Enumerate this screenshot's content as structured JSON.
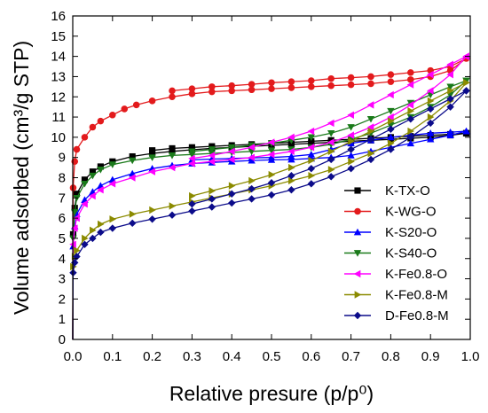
{
  "chart_data": {
    "type": "line",
    "xlabel": "Relative presure (p/p⁰)",
    "ylabel": "Volume adsorbed (cm³/g STP)",
    "xlim": [
      0.0,
      1.0
    ],
    "ylim": [
      0,
      16
    ],
    "x_ticks": [
      "0.0",
      "0.1",
      "0.2",
      "0.3",
      "0.4",
      "0.5",
      "0.6",
      "0.7",
      "0.8",
      "0.9",
      "1.0"
    ],
    "y_ticks": [
      "0",
      "1",
      "2",
      "3",
      "4",
      "5",
      "6",
      "7",
      "8",
      "9",
      "10",
      "11",
      "12",
      "13",
      "14",
      "15",
      "16"
    ],
    "grid": false,
    "legend_position": "bottom-right",
    "series": [
      {
        "name": "K-TX-O",
        "color": "#000000",
        "marker": "square",
        "adsorption": [
          [
            0.0,
            0
          ],
          [
            0.001,
            5.2
          ],
          [
            0.005,
            6.5
          ],
          [
            0.01,
            7.2
          ],
          [
            0.03,
            7.9
          ],
          [
            0.05,
            8.3
          ],
          [
            0.07,
            8.55
          ],
          [
            0.1,
            8.8
          ],
          [
            0.15,
            9.05
          ],
          [
            0.2,
            9.2
          ],
          [
            0.25,
            9.3
          ],
          [
            0.3,
            9.38
          ],
          [
            0.35,
            9.45
          ],
          [
            0.4,
            9.5
          ],
          [
            0.45,
            9.55
          ],
          [
            0.5,
            9.6
          ],
          [
            0.55,
            9.65
          ],
          [
            0.6,
            9.7
          ],
          [
            0.65,
            9.75
          ],
          [
            0.7,
            9.8
          ],
          [
            0.75,
            9.85
          ],
          [
            0.8,
            9.9
          ],
          [
            0.85,
            9.95
          ],
          [
            0.9,
            10.0
          ],
          [
            0.95,
            10.1
          ],
          [
            0.99,
            10.2
          ]
        ],
        "desorption": [
          [
            0.99,
            10.2
          ],
          [
            0.95,
            10.15
          ],
          [
            0.9,
            10.1
          ],
          [
            0.85,
            10.05
          ],
          [
            0.8,
            10.0
          ],
          [
            0.75,
            9.95
          ],
          [
            0.7,
            9.9
          ],
          [
            0.65,
            9.85
          ],
          [
            0.6,
            9.8
          ],
          [
            0.55,
            9.75
          ],
          [
            0.5,
            9.7
          ],
          [
            0.45,
            9.65
          ],
          [
            0.4,
            9.6
          ],
          [
            0.35,
            9.55
          ],
          [
            0.3,
            9.5
          ],
          [
            0.25,
            9.45
          ],
          [
            0.2,
            9.35
          ]
        ]
      },
      {
        "name": "K-WG-O",
        "color": "#e31a1c",
        "marker": "circle",
        "adsorption": [
          [
            0.0,
            0
          ],
          [
            0.001,
            7.5
          ],
          [
            0.005,
            8.8
          ],
          [
            0.01,
            9.4
          ],
          [
            0.03,
            10.0
          ],
          [
            0.05,
            10.5
          ],
          [
            0.07,
            10.8
          ],
          [
            0.1,
            11.1
          ],
          [
            0.13,
            11.4
          ],
          [
            0.16,
            11.6
          ],
          [
            0.2,
            11.8
          ],
          [
            0.25,
            12.0
          ],
          [
            0.3,
            12.15
          ],
          [
            0.35,
            12.25
          ],
          [
            0.4,
            12.3
          ],
          [
            0.45,
            12.35
          ],
          [
            0.5,
            12.4
          ],
          [
            0.55,
            12.45
          ],
          [
            0.6,
            12.5
          ],
          [
            0.65,
            12.55
          ],
          [
            0.7,
            12.6
          ],
          [
            0.75,
            12.65
          ],
          [
            0.8,
            12.75
          ],
          [
            0.85,
            12.85
          ],
          [
            0.9,
            13.0
          ],
          [
            0.95,
            13.3
          ],
          [
            0.99,
            13.9
          ]
        ],
        "desorption": [
          [
            0.99,
            13.9
          ],
          [
            0.95,
            13.5
          ],
          [
            0.9,
            13.3
          ],
          [
            0.85,
            13.2
          ],
          [
            0.8,
            13.1
          ],
          [
            0.75,
            13.0
          ],
          [
            0.7,
            12.95
          ],
          [
            0.65,
            12.9
          ],
          [
            0.6,
            12.8
          ],
          [
            0.55,
            12.75
          ],
          [
            0.5,
            12.7
          ],
          [
            0.45,
            12.62
          ],
          [
            0.4,
            12.55
          ],
          [
            0.35,
            12.5
          ],
          [
            0.3,
            12.4
          ],
          [
            0.25,
            12.3
          ]
        ]
      },
      {
        "name": "K-S20-O",
        "color": "#0000ff",
        "marker": "triangle-up",
        "adsorption": [
          [
            0.0,
            0
          ],
          [
            0.001,
            4.6
          ],
          [
            0.005,
            5.6
          ],
          [
            0.01,
            6.2
          ],
          [
            0.03,
            6.9
          ],
          [
            0.05,
            7.3
          ],
          [
            0.07,
            7.6
          ],
          [
            0.1,
            7.9
          ],
          [
            0.15,
            8.2
          ],
          [
            0.2,
            8.45
          ],
          [
            0.25,
            8.6
          ],
          [
            0.3,
            8.7
          ],
          [
            0.35,
            8.75
          ],
          [
            0.4,
            8.8
          ],
          [
            0.45,
            8.85
          ],
          [
            0.5,
            8.88
          ],
          [
            0.55,
            8.9
          ],
          [
            0.6,
            8.95
          ],
          [
            0.65,
            9.0
          ],
          [
            0.7,
            9.1
          ],
          [
            0.75,
            9.3
          ],
          [
            0.8,
            9.5
          ],
          [
            0.85,
            9.7
          ],
          [
            0.9,
            9.9
          ],
          [
            0.95,
            10.1
          ],
          [
            0.99,
            10.3
          ]
        ],
        "desorption": [
          [
            0.99,
            10.3
          ],
          [
            0.95,
            10.25
          ],
          [
            0.9,
            10.2
          ],
          [
            0.85,
            10.1
          ],
          [
            0.8,
            10.0
          ],
          [
            0.75,
            9.85
          ],
          [
            0.7,
            9.7
          ],
          [
            0.65,
            9.4
          ],
          [
            0.6,
            9.15
          ],
          [
            0.55,
            9.05
          ],
          [
            0.5,
            9.0
          ],
          [
            0.45,
            8.98
          ],
          [
            0.4,
            8.95
          ],
          [
            0.35,
            8.92
          ],
          [
            0.3,
            8.88
          ]
        ]
      },
      {
        "name": "K-S40-O",
        "color": "#1a7a1a",
        "marker": "triangle-down",
        "adsorption": [
          [
            0.0,
            0
          ],
          [
            0.001,
            5.0
          ],
          [
            0.005,
            6.3
          ],
          [
            0.01,
            7.0
          ],
          [
            0.03,
            7.7
          ],
          [
            0.05,
            8.1
          ],
          [
            0.07,
            8.4
          ],
          [
            0.1,
            8.65
          ],
          [
            0.15,
            8.85
          ],
          [
            0.2,
            9.0
          ],
          [
            0.25,
            9.1
          ],
          [
            0.3,
            9.15
          ],
          [
            0.35,
            9.2
          ],
          [
            0.4,
            9.25
          ],
          [
            0.45,
            9.3
          ],
          [
            0.5,
            9.35
          ],
          [
            0.55,
            9.4
          ],
          [
            0.6,
            9.5
          ],
          [
            0.65,
            9.65
          ],
          [
            0.7,
            9.9
          ],
          [
            0.75,
            10.2
          ],
          [
            0.8,
            10.6
          ],
          [
            0.85,
            11.0
          ],
          [
            0.9,
            11.5
          ],
          [
            0.95,
            12.1
          ],
          [
            0.99,
            12.8
          ]
        ],
        "desorption": [
          [
            0.99,
            12.8
          ],
          [
            0.95,
            12.5
          ],
          [
            0.9,
            12.1
          ],
          [
            0.85,
            11.7
          ],
          [
            0.8,
            11.3
          ],
          [
            0.75,
            10.9
          ],
          [
            0.7,
            10.5
          ],
          [
            0.65,
            10.2
          ],
          [
            0.6,
            10.0
          ],
          [
            0.55,
            9.85
          ],
          [
            0.5,
            9.7
          ],
          [
            0.45,
            9.6
          ],
          [
            0.4,
            9.5
          ],
          [
            0.35,
            9.4
          ],
          [
            0.3,
            9.3
          ]
        ]
      },
      {
        "name": "K-Fe0.8-O",
        "color": "#ff00ff",
        "marker": "triangle-left",
        "adsorption": [
          [
            0.0,
            0
          ],
          [
            0.001,
            4.7
          ],
          [
            0.005,
            5.5
          ],
          [
            0.01,
            6.0
          ],
          [
            0.03,
            6.7
          ],
          [
            0.05,
            7.1
          ],
          [
            0.07,
            7.4
          ],
          [
            0.1,
            7.7
          ],
          [
            0.15,
            8.0
          ],
          [
            0.2,
            8.3
          ],
          [
            0.25,
            8.5
          ],
          [
            0.3,
            8.7
          ],
          [
            0.35,
            8.8
          ],
          [
            0.4,
            8.9
          ],
          [
            0.45,
            9.0
          ],
          [
            0.5,
            9.15
          ],
          [
            0.55,
            9.3
          ],
          [
            0.6,
            9.5
          ],
          [
            0.65,
            9.75
          ],
          [
            0.7,
            10.1
          ],
          [
            0.75,
            10.5
          ],
          [
            0.8,
            11.0
          ],
          [
            0.85,
            11.6
          ],
          [
            0.9,
            12.3
          ],
          [
            0.95,
            13.1
          ],
          [
            0.99,
            14.0
          ]
        ],
        "desorption": [
          [
            0.99,
            14.0
          ],
          [
            0.95,
            13.6
          ],
          [
            0.9,
            13.1
          ],
          [
            0.85,
            12.6
          ],
          [
            0.8,
            12.1
          ],
          [
            0.75,
            11.6
          ],
          [
            0.7,
            11.1
          ],
          [
            0.65,
            10.7
          ],
          [
            0.6,
            10.3
          ],
          [
            0.55,
            10.0
          ],
          [
            0.5,
            9.75
          ],
          [
            0.45,
            9.5
          ],
          [
            0.4,
            9.3
          ],
          [
            0.35,
            9.1
          ],
          [
            0.3,
            8.95
          ]
        ]
      },
      {
        "name": "K-Fe0.8-M",
        "color": "#8b8b00",
        "marker": "triangle-right",
        "adsorption": [
          [
            0.0,
            0
          ],
          [
            0.001,
            3.6
          ],
          [
            0.005,
            4.1
          ],
          [
            0.01,
            4.4
          ],
          [
            0.03,
            5.0
          ],
          [
            0.05,
            5.4
          ],
          [
            0.07,
            5.7
          ],
          [
            0.1,
            5.95
          ],
          [
            0.15,
            6.2
          ],
          [
            0.2,
            6.4
          ],
          [
            0.25,
            6.6
          ],
          [
            0.3,
            6.8
          ],
          [
            0.35,
            7.0
          ],
          [
            0.4,
            7.2
          ],
          [
            0.45,
            7.4
          ],
          [
            0.5,
            7.6
          ],
          [
            0.55,
            7.85
          ],
          [
            0.6,
            8.1
          ],
          [
            0.65,
            8.4
          ],
          [
            0.7,
            8.8
          ],
          [
            0.75,
            9.2
          ],
          [
            0.8,
            9.7
          ],
          [
            0.85,
            10.3
          ],
          [
            0.9,
            11.0
          ],
          [
            0.95,
            11.8
          ],
          [
            0.99,
            12.7
          ]
        ],
        "desorption": [
          [
            0.99,
            12.7
          ],
          [
            0.95,
            12.3
          ],
          [
            0.9,
            11.8
          ],
          [
            0.85,
            11.3
          ],
          [
            0.8,
            10.8
          ],
          [
            0.75,
            10.3
          ],
          [
            0.7,
            9.8
          ],
          [
            0.65,
            9.3
          ],
          [
            0.6,
            8.85
          ],
          [
            0.55,
            8.5
          ],
          [
            0.5,
            8.15
          ],
          [
            0.45,
            7.85
          ],
          [
            0.4,
            7.6
          ],
          [
            0.35,
            7.35
          ],
          [
            0.3,
            7.1
          ]
        ]
      },
      {
        "name": "D-Fe0.8-M",
        "color": "#0b0b8a",
        "marker": "diamond",
        "adsorption": [
          [
            0.0,
            0
          ],
          [
            0.001,
            3.3
          ],
          [
            0.005,
            3.8
          ],
          [
            0.01,
            4.1
          ],
          [
            0.03,
            4.7
          ],
          [
            0.05,
            5.0
          ],
          [
            0.07,
            5.3
          ],
          [
            0.1,
            5.5
          ],
          [
            0.15,
            5.75
          ],
          [
            0.2,
            5.95
          ],
          [
            0.25,
            6.15
          ],
          [
            0.3,
            6.35
          ],
          [
            0.35,
            6.55
          ],
          [
            0.4,
            6.75
          ],
          [
            0.45,
            6.95
          ],
          [
            0.5,
            7.15
          ],
          [
            0.55,
            7.4
          ],
          [
            0.6,
            7.7
          ],
          [
            0.65,
            8.05
          ],
          [
            0.7,
            8.45
          ],
          [
            0.75,
            8.9
          ],
          [
            0.8,
            9.4
          ],
          [
            0.85,
            10.0
          ],
          [
            0.9,
            10.7
          ],
          [
            0.95,
            11.5
          ],
          [
            0.99,
            12.3
          ]
        ],
        "desorption": [
          [
            0.99,
            12.3
          ],
          [
            0.95,
            11.9
          ],
          [
            0.9,
            11.4
          ],
          [
            0.85,
            10.9
          ],
          [
            0.8,
            10.4
          ],
          [
            0.75,
            9.9
          ],
          [
            0.7,
            9.4
          ],
          [
            0.65,
            8.9
          ],
          [
            0.6,
            8.45
          ],
          [
            0.55,
            8.1
          ],
          [
            0.5,
            7.75
          ],
          [
            0.45,
            7.45
          ],
          [
            0.4,
            7.2
          ],
          [
            0.35,
            6.95
          ],
          [
            0.3,
            6.7
          ]
        ]
      }
    ]
  }
}
